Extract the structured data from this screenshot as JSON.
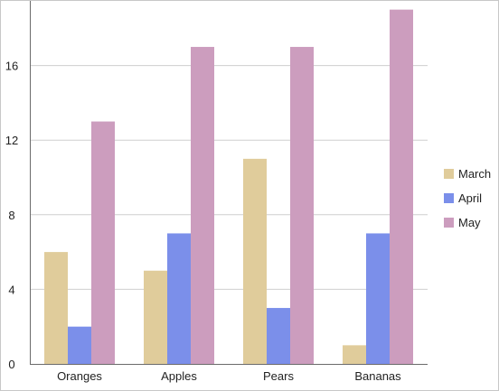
{
  "chart_data": {
    "type": "bar",
    "categories": [
      "Oranges",
      "Apples",
      "Pears",
      "Bananas"
    ],
    "series": [
      {
        "name": "March",
        "color": "#E0CC9B",
        "values": [
          6,
          5,
          11,
          1
        ]
      },
      {
        "name": "April",
        "color": "#7B8FEA",
        "values": [
          2,
          7,
          3,
          7
        ]
      },
      {
        "name": "May",
        "color": "#CC9DBE",
        "values": [
          13,
          17,
          17,
          19
        ]
      }
    ],
    "yticks": [
      "0",
      "4",
      "8",
      "12",
      "16"
    ],
    "ylim": [
      0,
      19
    ],
    "grid": true,
    "legend_position": "right"
  }
}
